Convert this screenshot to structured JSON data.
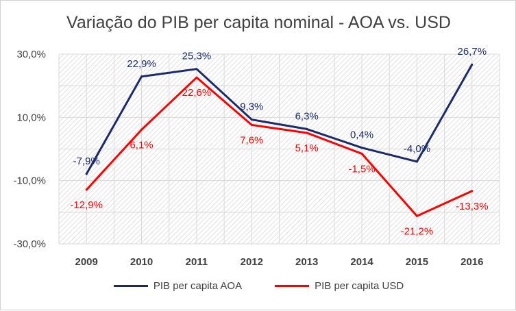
{
  "chart_data": {
    "type": "line",
    "title": "Variação do PIB per capita nominal - AOA vs. USD",
    "categories": [
      "2009",
      "2010",
      "2011",
      "2012",
      "2013",
      "2014",
      "2015",
      "2016"
    ],
    "ylim": [
      -30,
      30
    ],
    "yticks": [
      30,
      10,
      -10,
      -30
    ],
    "ytick_labels": [
      "30,0%",
      "10,0%",
      "-10,0%",
      "-30,0%"
    ],
    "grid": true,
    "legend": "bottom",
    "series": [
      {
        "name": "PIB per capita AOA",
        "color": "#1b2a6b",
        "values": [
          -7.9,
          22.9,
          25.3,
          9.3,
          6.3,
          0.4,
          -4.0,
          26.7
        ],
        "labels": [
          "-7,9%",
          "22,9%",
          "25,3%",
          "9,3%",
          "6,3%",
          "0,4%",
          "-4,0%",
          "26,7%"
        ]
      },
      {
        "name": "PIB per capita USD",
        "color": "#ff0000",
        "values": [
          -12.9,
          6.1,
          22.6,
          7.6,
          5.1,
          -1.5,
          -21.2,
          -13.3
        ],
        "labels": [
          "-12,9%",
          "6,1%",
          "22,6%",
          "7,6%",
          "5,1%",
          "-1,5%",
          "-21,2%",
          "-13,3%"
        ]
      }
    ]
  }
}
